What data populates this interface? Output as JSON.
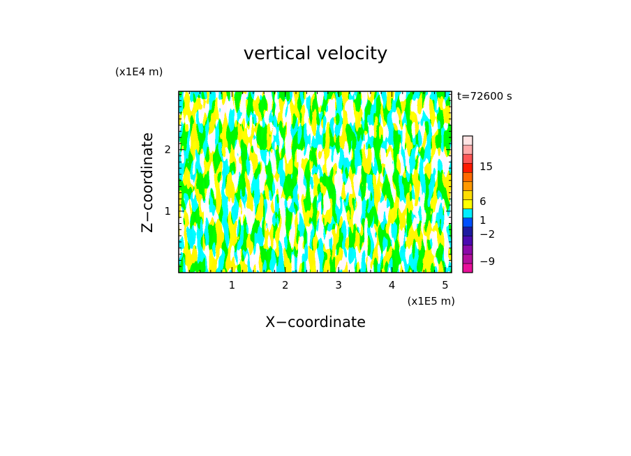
{
  "chart_data": {
    "type": "heatmap",
    "title": "vertical velocity",
    "xlabel": "X−coordinate",
    "ylabel": "Z−coordinate",
    "x_unit": "(x1E5 m)",
    "y_unit": "(x1E4 m)",
    "time_label": "t=72600 s",
    "xlim": [
      0,
      5.12
    ],
    "ylim": [
      0,
      2.95
    ],
    "x_ticks": [
      "1",
      "2",
      "3",
      "4",
      "5"
    ],
    "y_ticks": [
      "1",
      "2"
    ],
    "field_colors": {
      "positive": "#ffff00",
      "negative": "#00eeff"
    },
    "colorbar": {
      "tick_labels": [
        "15",
        "6",
        "1",
        "−2",
        "−9"
      ],
      "levels": [
        {
          "color": "#e8109a"
        },
        {
          "color": "#b40f9c"
        },
        {
          "color": "#8b0aa8"
        },
        {
          "color": "#4b0ab0"
        },
        {
          "color": "#1e1aa0"
        },
        {
          "color": "#0050ff"
        },
        {
          "color": "#00eeff"
        },
        {
          "color": "#ffff00"
        },
        {
          "color": "#ffdd00"
        },
        {
          "color": "#ff9900"
        },
        {
          "color": "#ff6a00"
        },
        {
          "color": "#ff1a00"
        },
        {
          "color": "#ff5555"
        },
        {
          "color": "#ffaaaa"
        },
        {
          "color": "#ffe4e4"
        }
      ]
    }
  }
}
